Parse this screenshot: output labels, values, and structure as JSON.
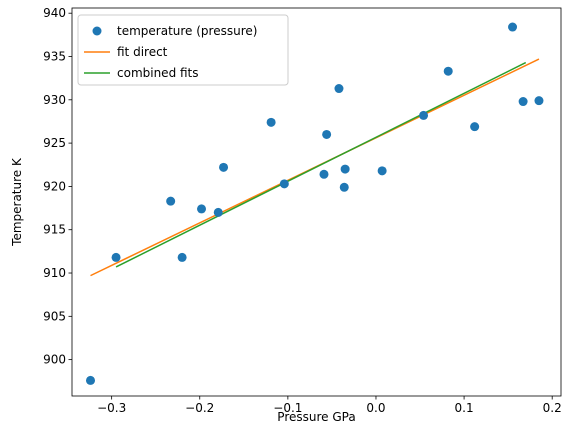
{
  "chart_data": {
    "type": "scatter",
    "xlabel": "Pressure GPa",
    "ylabel": "Temperature K",
    "xlim": [
      -0.345,
      0.21
    ],
    "ylim": [
      895.8,
      940.6
    ],
    "xticks": [
      -0.3,
      -0.2,
      -0.1,
      0.0,
      0.1,
      0.2
    ],
    "xtick_labels": [
      "−0.3",
      "−0.2",
      "−0.1",
      "0.0",
      "0.1",
      "0.2"
    ],
    "yticks": [
      900,
      905,
      910,
      915,
      920,
      925,
      930,
      935,
      940
    ],
    "ytick_labels": [
      "900",
      "905",
      "910",
      "915",
      "920",
      "925",
      "930",
      "935",
      "940"
    ],
    "legend_position": "top-left",
    "grid": false,
    "series": [
      {
        "name": "temperature (pressure)",
        "kind": "scatter",
        "color": "#1f77b4",
        "x": [
          -0.324,
          -0.295,
          -0.233,
          -0.22,
          -0.198,
          -0.179,
          -0.173,
          -0.119,
          -0.104,
          -0.059,
          -0.056,
          -0.042,
          -0.036,
          -0.035,
          0.007,
          0.054,
          0.082,
          0.112,
          0.155,
          0.167,
          0.185
        ],
        "y": [
          897.6,
          911.8,
          918.3,
          911.8,
          917.4,
          917.0,
          922.2,
          927.4,
          920.3,
          921.4,
          926.0,
          931.3,
          919.9,
          922.0,
          921.8,
          928.2,
          933.3,
          926.9,
          938.4,
          929.8,
          929.9
        ]
      },
      {
        "name": "fit direct",
        "kind": "line",
        "color": "#ff7f0e",
        "x": [
          -0.324,
          0.185
        ],
        "y": [
          909.7,
          934.7
        ]
      },
      {
        "name": "combined fits",
        "kind": "line",
        "color": "#2ca02c",
        "x": [
          -0.295,
          0.17
        ],
        "y": [
          910.7,
          934.3
        ]
      }
    ]
  }
}
